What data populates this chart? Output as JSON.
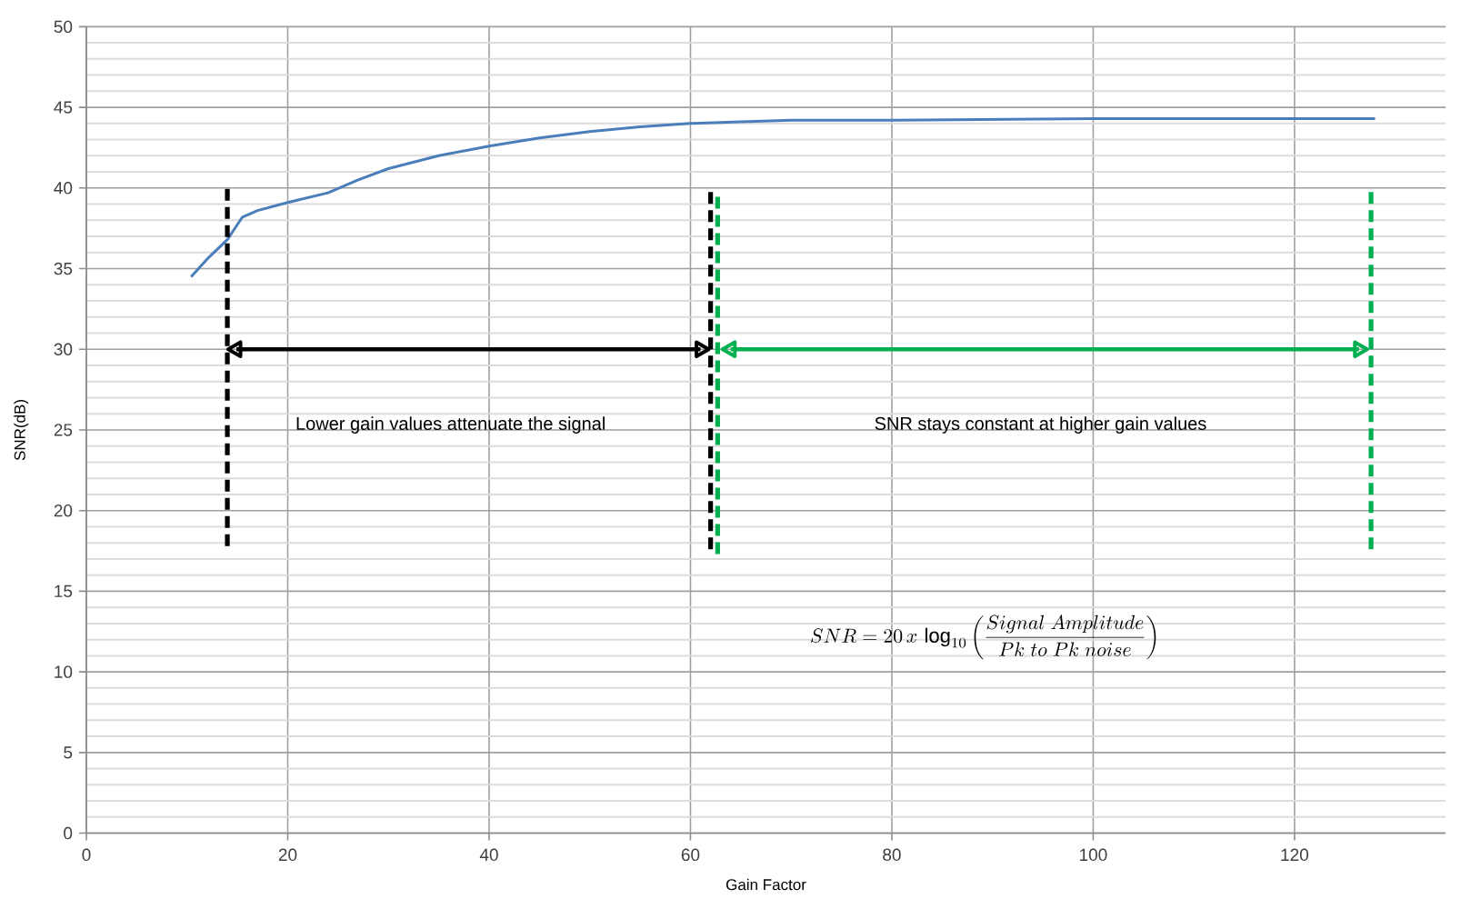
{
  "chart_data": {
    "type": "line",
    "xlabel": "Gain Factor",
    "ylabel": "SNR(dB)",
    "x": [
      10.4,
      12,
      14,
      15.5,
      17,
      20,
      24,
      27,
      30,
      35,
      40,
      45,
      50,
      55,
      60,
      65,
      70,
      80,
      100,
      120,
      128
    ],
    "series": [
      {
        "color": "#4a7ebb",
        "values": [
          34.5,
          35.6,
          36.8,
          38.2,
          38.6,
          39.1,
          39.7,
          40.5,
          41.2,
          42.0,
          42.6,
          43.1,
          43.5,
          43.8,
          44.0,
          44.1,
          44.2,
          44.2,
          44.3,
          44.3,
          44.3
        ]
      },
      {
        "type": "line",
        "x": [
          14,
          14
        ],
        "values": [
          17.8,
          40.2
        ],
        "color": "#000000",
        "line_style": "dashed"
      },
      {
        "type": "line",
        "x": [
          62,
          62
        ],
        "values": [
          17.6,
          39.9
        ],
        "color": "#000000",
        "line_style": "dashed"
      },
      {
        "type": "line",
        "x": [
          62.7,
          62.7
        ],
        "values": [
          17.3,
          39.8
        ],
        "color": "#00b050",
        "line_style": "dashed"
      },
      {
        "type": "line",
        "x": [
          127.6,
          127.6
        ],
        "values": [
          17.6,
          40.0
        ],
        "color": "#00b050",
        "line_style": "dashed"
      },
      {
        "type": "line",
        "x": [
          14.9,
          61.0
        ],
        "values": [
          30,
          30
        ],
        "color": "#000000",
        "marker": "triangle"
      },
      {
        "type": "line",
        "x": [
          64.0,
          126.4
        ],
        "values": [
          30,
          30
        ],
        "color": "#00b050",
        "marker": "triangle"
      }
    ],
    "xlim": [
      0,
      135
    ],
    "ylim": [
      0,
      50
    ],
    "xticks": [
      0,
      20,
      40,
      60,
      80,
      100,
      120
    ],
    "yticks": [
      0,
      5,
      10,
      15,
      20,
      25,
      30,
      35,
      40,
      45,
      50
    ],
    "grid": true,
    "annotations": [
      "Lower gain values attenuate the signal",
      "SNR stays constant at higher gain values",
      "SNR = 20\\,x\\,\\log_{10}\\left(\\frac{Signal\\ Amplitude}{Pk\\ to\\ Pk\\ noise}\\right)"
    ]
  }
}
